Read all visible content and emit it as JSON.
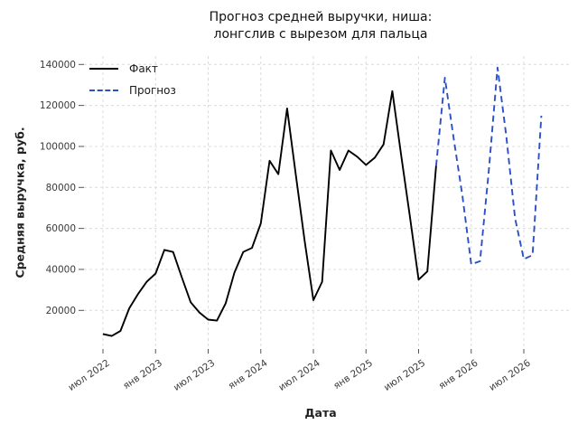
{
  "title": {
    "line1": "Прогноз средней выручки, ниша:",
    "line2": "лонгслив с вырезом для пальца"
  },
  "axes": {
    "y_label": "Средняя выручка, руб.",
    "x_label": "Дата"
  },
  "legend": {
    "fact_label": "Факт",
    "forecast_label": "Прогноз"
  },
  "colors": {
    "fact_line": "#000000",
    "forecast_line": "#2b50c8",
    "grid": "#dcdcdc",
    "tick_text": "#3a3a3a"
  },
  "chart_data": {
    "type": "line",
    "title": "Прогноз средней выручки, ниша: лонгслив с вырезом для пальца",
    "xlabel": "Дата",
    "ylabel": "Средняя выручка, руб.",
    "grid": "dashed-light-gray",
    "legend_position": "upper left",
    "ylim": [
      1000,
      145000
    ],
    "y_ticks": [
      20000,
      40000,
      60000,
      80000,
      100000,
      120000,
      140000
    ],
    "x_ticks": [
      {
        "label": "июл 2022",
        "month": "2022-07"
      },
      {
        "label": "янв 2023",
        "month": "2023-01"
      },
      {
        "label": "июл 2023",
        "month": "2023-07"
      },
      {
        "label": "янв 2024",
        "month": "2024-01"
      },
      {
        "label": "июл 2024",
        "month": "2024-07"
      },
      {
        "label": "янв 2025",
        "month": "2025-01"
      },
      {
        "label": "июл 2025",
        "month": "2025-07"
      },
      {
        "label": "янв 2026",
        "month": "2026-01"
      },
      {
        "label": "июл 2026",
        "month": "2026-07"
      }
    ],
    "series": [
      {
        "name": "Факт",
        "style": "solid",
        "color": "#000000",
        "months": [
          "2022-07",
          "2022-08",
          "2022-09",
          "2022-10",
          "2022-11",
          "2022-12",
          "2023-01",
          "2023-02",
          "2023-03",
          "2023-04",
          "2023-05",
          "2023-06",
          "2023-07",
          "2023-08",
          "2023-09",
          "2023-10",
          "2023-11",
          "2023-12",
          "2024-01",
          "2024-02",
          "2024-03",
          "2024-04",
          "2024-05",
          "2024-06",
          "2024-07",
          "2024-08",
          "2024-09",
          "2024-10",
          "2024-11",
          "2024-12",
          "2025-01",
          "2025-02",
          "2025-03",
          "2025-04",
          "2025-05",
          "2025-06",
          "2025-07",
          "2025-08",
          "2025-09"
        ],
        "values": [
          8500,
          7500,
          10000,
          21000,
          28000,
          34000,
          38000,
          49500,
          48500,
          36000,
          24000,
          19000,
          15500,
          15000,
          23500,
          38500,
          48500,
          50500,
          62500,
          93000,
          86500,
          118500,
          86000,
          54000,
          25000,
          34000,
          98000,
          88500,
          98000,
          95000,
          91000,
          94500,
          101000,
          127000,
          96000,
          66000,
          35000,
          39000,
          90500
        ]
      },
      {
        "name": "Прогноз",
        "style": "dashed",
        "color": "#2b50c8",
        "months": [
          "2025-09",
          "2025-10",
          "2025-11",
          "2025-12",
          "2026-01",
          "2026-02",
          "2026-03",
          "2026-04",
          "2026-05",
          "2026-06",
          "2026-07",
          "2026-08",
          "2026-09"
        ],
        "values": [
          90500,
          133500,
          104000,
          76000,
          42500,
          44000,
          88000,
          138500,
          105000,
          65000,
          45000,
          47000,
          115000
        ]
      }
    ]
  }
}
